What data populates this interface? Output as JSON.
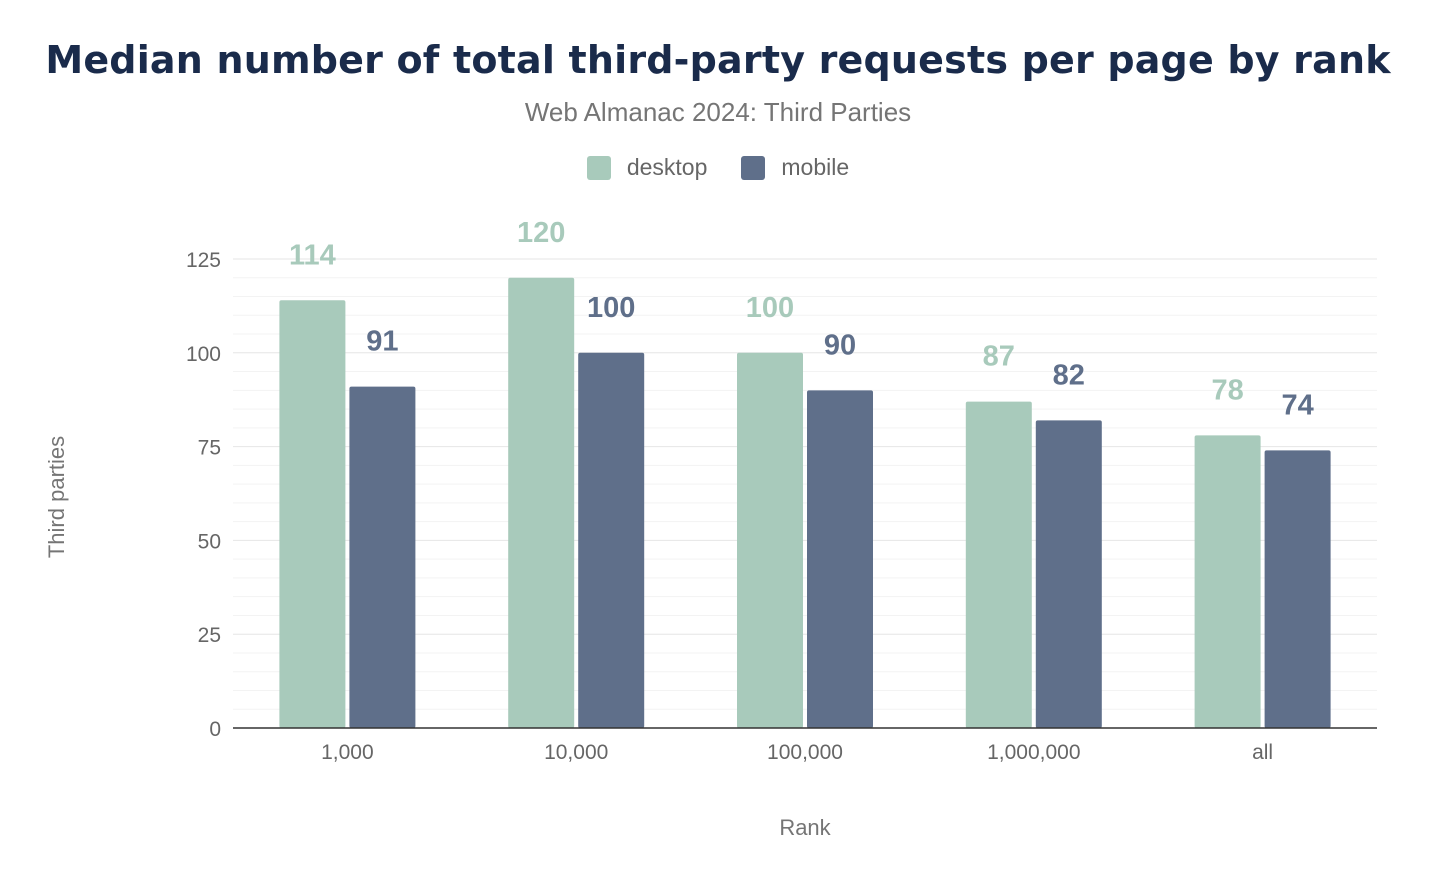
{
  "chart_data": {
    "type": "bar",
    "title": "Median number of total third-party requests per page by rank",
    "subtitle": "Web Almanac 2024: Third Parties",
    "xlabel": "Rank",
    "ylabel": "Third parties",
    "categories": [
      "1,000",
      "10,000",
      "100,000",
      "1,000,000",
      "all"
    ],
    "series": [
      {
        "name": "desktop",
        "color": "#a8cabb",
        "values": [
          114,
          120,
          100,
          87,
          78
        ]
      },
      {
        "name": "mobile",
        "color": "#5f6f8a",
        "values": [
          91,
          100,
          90,
          82,
          74
        ]
      }
    ],
    "ylim": [
      0,
      125
    ],
    "yticks": [
      0,
      25,
      50,
      75,
      100,
      125
    ],
    "grid": true,
    "legend_position": "top-center",
    "data_labels": true
  }
}
